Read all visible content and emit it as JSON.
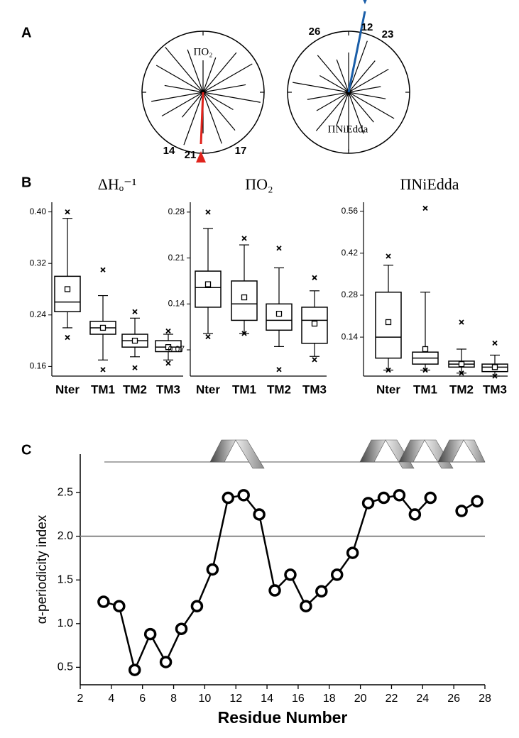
{
  "panel_labels": [
    "A",
    "B",
    "C"
  ],
  "wheels": [
    {
      "label": "ΠO₂",
      "numbers": [
        14,
        21,
        17
      ]
    },
    {
      "label": "ΠNiEdda",
      "numbers": [
        26,
        12,
        23
      ]
    }
  ],
  "chart_data": [
    {
      "type": "box",
      "title": "ΔHₒ⁻¹",
      "categories": [
        "Nter",
        "TM1",
        "TM2",
        "TM3"
      ],
      "boxes": [
        {
          "whislo": 0.22,
          "q1": 0.245,
          "med": 0.26,
          "q3": 0.3,
          "whishi": 0.39,
          "mean": 0.28,
          "fliers": [
            0.205,
            0.4
          ]
        },
        {
          "whislo": 0.17,
          "q1": 0.21,
          "med": 0.22,
          "q3": 0.23,
          "whishi": 0.27,
          "mean": 0.22,
          "fliers": [
            0.155,
            0.31
          ]
        },
        {
          "whislo": 0.175,
          "q1": 0.19,
          "med": 0.2,
          "q3": 0.21,
          "whishi": 0.235,
          "mean": 0.2,
          "fliers": [
            0.158,
            0.245
          ]
        },
        {
          "whislo": 0.17,
          "q1": 0.183,
          "med": 0.19,
          "q3": 0.2,
          "whishi": 0.21,
          "mean": 0.19,
          "fliers": [
            0.165,
            0.215
          ]
        }
      ],
      "ylim": [
        0.145,
        0.415
      ],
      "yticks": [
        0.16,
        0.24,
        0.32,
        {
          "value": 0.4,
          "label": "0.40"
        }
      ]
    },
    {
      "type": "box",
      "title": "ΠO₂",
      "categories": [
        "Nter",
        "TM1",
        "TM2",
        "TM3"
      ],
      "boxes": [
        {
          "whislo": 0.095,
          "q1": 0.135,
          "med": 0.165,
          "q3": 0.19,
          "whishi": 0.255,
          "mean": 0.17,
          "fliers": [
            0.09,
            0.28
          ]
        },
        {
          "whislo": 0.095,
          "q1": 0.115,
          "med": 0.14,
          "q3": 0.175,
          "whishi": 0.23,
          "mean": 0.15,
          "fliers": [
            0.095,
            0.24
          ]
        },
        {
          "whislo": 0.075,
          "q1": 0.1,
          "med": 0.115,
          "q3": 0.14,
          "whishi": 0.195,
          "mean": 0.125,
          "fliers": [
            0.04,
            0.225
          ]
        },
        {
          "whislo": 0.06,
          "q1": 0.08,
          "med": 0.115,
          "q3": 0.135,
          "whishi": 0.16,
          "mean": 0.11,
          "fliers": [
            0.055,
            0.18
          ]
        }
      ],
      "ylim": [
        0.03,
        0.295
      ],
      "yticks": [
        0.07,
        0.14,
        0.21,
        0.28
      ]
    },
    {
      "type": "box",
      "title": "ΠNiEdda",
      "categories": [
        "Nter",
        "TM1",
        "TM2",
        "TM3"
      ],
      "boxes": [
        {
          "whislo": 0.03,
          "q1": 0.07,
          "med": 0.14,
          "q3": 0.29,
          "whishi": 0.38,
          "mean": 0.19,
          "fliers": [
            0.03,
            0.41
          ]
        },
        {
          "whislo": 0.03,
          "q1": 0.05,
          "med": 0.07,
          "q3": 0.09,
          "whishi": 0.29,
          "mean": 0.1,
          "fliers": [
            0.03,
            0.57
          ]
        },
        {
          "whislo": 0.02,
          "q1": 0.04,
          "med": 0.05,
          "q3": 0.06,
          "whishi": 0.1,
          "mean": 0.05,
          "fliers": [
            0.02,
            0.19
          ]
        },
        {
          "whislo": 0.01,
          "q1": 0.025,
          "med": 0.04,
          "q3": 0.05,
          "whishi": 0.08,
          "mean": 0.04,
          "fliers": [
            0.01,
            0.12
          ]
        }
      ],
      "ylim": [
        0.01,
        0.59
      ],
      "yticks": [
        0.14,
        0.28,
        0.42,
        0.56
      ]
    },
    {
      "type": "line",
      "x": [
        3.5,
        4.5,
        5.5,
        6.5,
        7.5,
        8.5,
        9.5,
        10.5,
        11.5,
        12.5,
        13.5,
        14.5,
        15.5,
        16.5,
        17.5,
        18.5,
        19.5,
        20.5,
        21.5,
        22.5,
        23.5,
        24.5,
        25.5,
        26.5,
        27.5
      ],
      "values": [
        1.25,
        1.2,
        0.47,
        0.88,
        0.56,
        0.94,
        1.2,
        1.62,
        2.44,
        2.47,
        2.25,
        1.38,
        1.56,
        1.2,
        1.37,
        1.56,
        1.81,
        2.38,
        2.44,
        2.47,
        2.25,
        2.44,
        null,
        2.29,
        2.4
      ],
      "color": "#000000",
      "xlim": [
        2,
        28
      ],
      "xticks": [
        2,
        4,
        6,
        8,
        10,
        12,
        14,
        16,
        18,
        20,
        22,
        24,
        26,
        28
      ],
      "ylim": [
        0.3,
        2.94
      ],
      "yticks": [
        0.5,
        {
          "value": 1,
          "label": "1.0"
        },
        1.5,
        {
          "value": 2,
          "label": "2.0"
        },
        2.5
      ],
      "hline": 2,
      "hline_color": "#888888",
      "xlabel": "Residue Number",
      "ylabel": "α-periodicity index"
    }
  ]
}
